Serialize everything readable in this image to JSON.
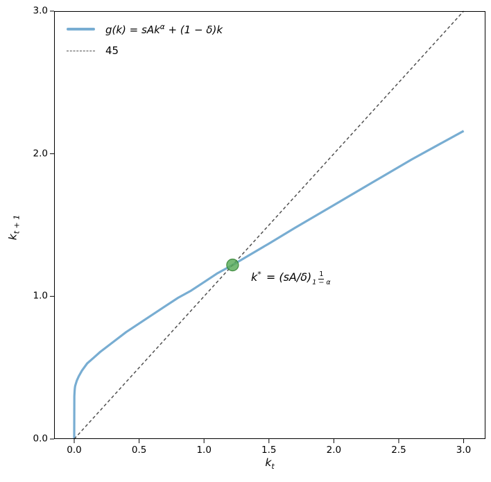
{
  "chart_data": {
    "type": "line",
    "title": "",
    "xlabel": "k_t",
    "ylabel": "k_{t+1}",
    "xlim": [
      -0.155,
      3.168
    ],
    "ylim": [
      0,
      3.0
    ],
    "xticks": [
      0.0,
      0.5,
      1.0,
      1.5,
      2.0,
      2.5,
      3.0
    ],
    "yticks": [
      0.0,
      1.0,
      2.0,
      3.0
    ],
    "tick_format_decimals": 1,
    "grid": false,
    "legend_position": "upper-left",
    "series": [
      {
        "name": "g(k) = sAk^α + (1 − δ)k",
        "style": "solid",
        "color": "#78add2",
        "width": 3.2,
        "points": [
          [
            0.0,
            0.0
          ],
          [
            0.001,
            0.3
          ],
          [
            0.002,
            0.32
          ],
          [
            0.004,
            0.35
          ],
          [
            0.007,
            0.37
          ],
          [
            0.01,
            0.38
          ],
          [
            0.02,
            0.41
          ],
          [
            0.035,
            0.44
          ],
          [
            0.06,
            0.48
          ],
          [
            0.1,
            0.53
          ],
          [
            0.15,
            0.57
          ],
          [
            0.2,
            0.61
          ],
          [
            0.3,
            0.68
          ],
          [
            0.4,
            0.75
          ],
          [
            0.5,
            0.81
          ],
          [
            0.6,
            0.87
          ],
          [
            0.7,
            0.93
          ],
          [
            0.8,
            0.99
          ],
          [
            0.9,
            1.04
          ],
          [
            1.0,
            1.1
          ],
          [
            1.1,
            1.16
          ],
          [
            1.22,
            1.22
          ],
          [
            1.35,
            1.29
          ],
          [
            1.5,
            1.37
          ],
          [
            1.7,
            1.48
          ],
          [
            2.0,
            1.64
          ],
          [
            2.3,
            1.8
          ],
          [
            2.6,
            1.96
          ],
          [
            2.8,
            2.06
          ],
          [
            3.0,
            2.16
          ]
        ]
      },
      {
        "name": "45",
        "style": "dashed",
        "color": "#4f4f4f",
        "width": 1.5,
        "dash": "4.5 3.5",
        "points": [
          [
            0.0,
            0.0
          ],
          [
            3.0,
            3.0
          ]
        ]
      }
    ],
    "fixed_point": {
      "x": 1.22,
      "y": 1.22,
      "fill": "#58ab58",
      "edge": "#348234",
      "radius": 8.5
    }
  },
  "legend": {
    "items": [
      {
        "label_pre": "g(k) = sAk",
        "label_sup": "α",
        "label_post": " + (1 − δ)k"
      },
      {
        "label": "45"
      }
    ]
  },
  "axes": {
    "xlabel_base": "k",
    "xlabel_sub": "t",
    "ylabel_base": "k",
    "ylabel_sub": "t + 1"
  },
  "annotation": {
    "base": "k",
    "sup": "*",
    "mid": " = (sA/δ)",
    "frac_num": "1",
    "frac_den": "1 − α"
  },
  "colors": {
    "spine": "#000000",
    "tick": "#000000",
    "text": "#000000",
    "background": "#ffffff"
  }
}
